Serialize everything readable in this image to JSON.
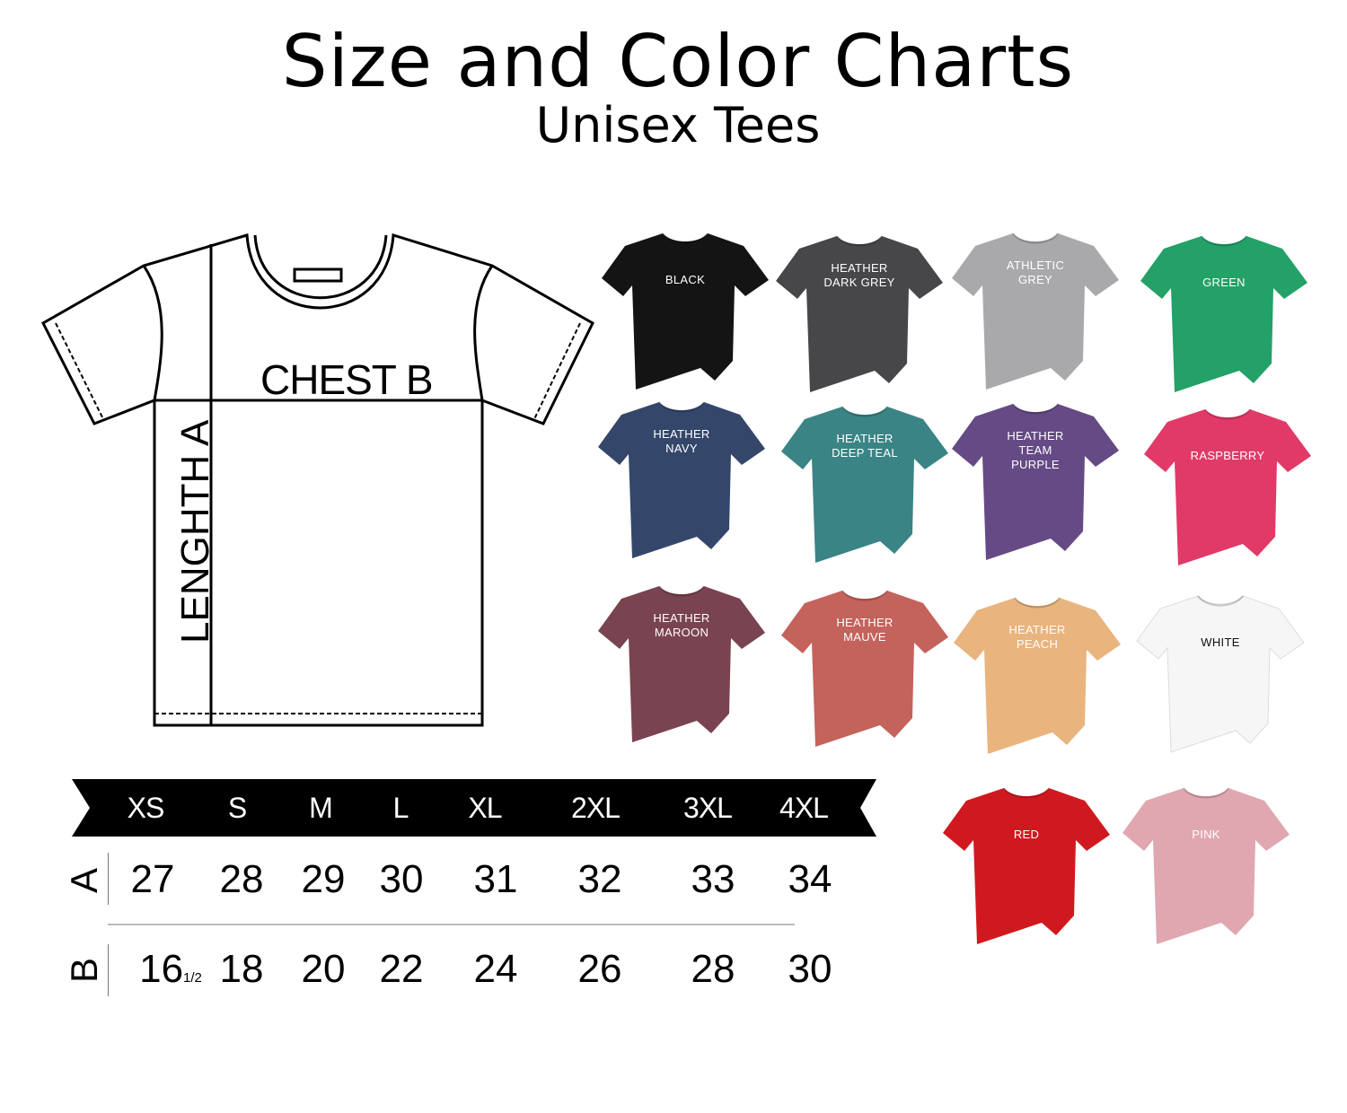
{
  "header": {
    "title": "Size and Color Charts",
    "subtitle": "Unisex Tees"
  },
  "diagram": {
    "chest_label": "CHEST B",
    "length_label": "LENGHTH A"
  },
  "size_table": {
    "sizes": [
      "XS",
      "S",
      "M",
      "L",
      "XL",
      "2XL",
      "3XL",
      "4XL"
    ],
    "rows": [
      {
        "label": "A",
        "values": [
          "27",
          "28",
          "29",
          "30",
          "31",
          "32",
          "33",
          "34"
        ]
      },
      {
        "label": "B",
        "values": [
          "16",
          "18",
          "20",
          "22",
          "24",
          "26",
          "28",
          "30"
        ],
        "first_fraction": "1/2"
      }
    ]
  },
  "colors": [
    {
      "name": "BLACK",
      "lines": [
        "BLACK"
      ],
      "hex": "#141414"
    },
    {
      "name": "HEATHER DARK GREY",
      "lines": [
        "HEATHER",
        "DARK GREY"
      ],
      "hex": "#47474a"
    },
    {
      "name": "ATHLETIC GREY",
      "lines": [
        "ATHLETIC",
        "GREY"
      ],
      "hex": "#a9a9ab"
    },
    {
      "name": "GREEN",
      "lines": [
        "GREEN"
      ],
      "hex": "#23a166"
    },
    {
      "name": "HEATHER NAVY",
      "lines": [
        "HEATHER",
        "NAVY"
      ],
      "hex": "#34476b"
    },
    {
      "name": "HEATHER DEEP TEAL",
      "lines": [
        "HEATHER",
        "DEEP TEAL"
      ],
      "hex": "#3a8485"
    },
    {
      "name": "HEATHER TEAM PURPLE",
      "lines": [
        "HEATHER",
        "TEAM",
        "PURPLE"
      ],
      "hex": "#654a85"
    },
    {
      "name": "RASPBERRY",
      "lines": [
        "RASPBERRY"
      ],
      "hex": "#e13a68"
    },
    {
      "name": "HEATHER MAROON",
      "lines": [
        "HEATHER",
        "MAROON"
      ],
      "hex": "#7a4350"
    },
    {
      "name": "HEATHER MAUVE",
      "lines": [
        "HEATHER",
        "MAUVE"
      ],
      "hex": "#c4625c"
    },
    {
      "name": "HEATHER PEACH",
      "lines": [
        "HEATHER",
        "PEACH"
      ],
      "hex": "#e9b47e"
    },
    {
      "name": "WHITE",
      "lines": [
        "WHITE"
      ],
      "hex": "#f6f6f6"
    },
    {
      "name": "RED",
      "lines": [
        "RED"
      ],
      "hex": "#d0191f"
    },
    {
      "name": "PINK",
      "lines": [
        "PINK"
      ],
      "hex": "#e0a7b0"
    }
  ]
}
